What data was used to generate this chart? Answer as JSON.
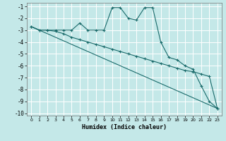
{
  "xlabel": "Humidex (Indice chaleur)",
  "background_color": "#c4e8e8",
  "grid_color": "#ffffff",
  "line_color": "#1a6b6b",
  "xlim": [
    -0.5,
    23.5
  ],
  "ylim": [
    -10.2,
    -0.7
  ],
  "yticks": [
    -10,
    -9,
    -8,
    -7,
    -6,
    -5,
    -4,
    -3,
    -2,
    -1
  ],
  "xticks": [
    0,
    1,
    2,
    3,
    4,
    5,
    6,
    7,
    8,
    9,
    10,
    11,
    12,
    13,
    14,
    15,
    16,
    17,
    18,
    19,
    20,
    21,
    22,
    23
  ],
  "line1_x": [
    0,
    1,
    2,
    3,
    4,
    5,
    6,
    7,
    8,
    9,
    10,
    11,
    12,
    13,
    14,
    15,
    16,
    17,
    18,
    19,
    20,
    21,
    22,
    23
  ],
  "line1_y": [
    -2.7,
    -3.0,
    -3.0,
    -3.0,
    -3.0,
    -3.0,
    -2.4,
    -3.0,
    -3.0,
    -3.0,
    -1.1,
    -1.1,
    -2.0,
    -2.15,
    -1.1,
    -1.1,
    -4.0,
    -5.3,
    -5.5,
    -6.0,
    -6.3,
    -7.7,
    -9.0,
    -9.6
  ],
  "line2_x": [
    0,
    23
  ],
  "line2_y": [
    -2.7,
    -9.6
  ],
  "line3_x": [
    0,
    1,
    2,
    3,
    4,
    5,
    6,
    7,
    8,
    9,
    10,
    11,
    12,
    13,
    14,
    15,
    16,
    17,
    18,
    19,
    20,
    21,
    22,
    23
  ],
  "line3_y": [
    -2.7,
    -3.0,
    -3.0,
    -3.1,
    -3.3,
    -3.6,
    -3.8,
    -4.0,
    -4.2,
    -4.4,
    -4.6,
    -4.8,
    -5.0,
    -5.2,
    -5.4,
    -5.6,
    -5.8,
    -6.0,
    -6.2,
    -6.4,
    -6.5,
    -6.7,
    -6.9,
    -9.6
  ]
}
